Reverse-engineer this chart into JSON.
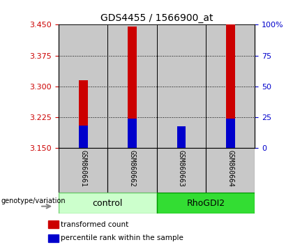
{
  "title": "GDS4455 / 1566900_at",
  "samples": [
    "GSM860661",
    "GSM860662",
    "GSM860663",
    "GSM860664"
  ],
  "red_values": [
    3.315,
    3.445,
    3.19,
    3.45
  ],
  "blue_values": [
    3.205,
    3.222,
    3.204,
    3.222
  ],
  "ymin": 3.15,
  "ymax": 3.45,
  "yticks_left": [
    3.15,
    3.225,
    3.3,
    3.375,
    3.45
  ],
  "yticks_right": [
    0,
    25,
    50,
    75,
    100
  ],
  "groups": [
    {
      "label": "control",
      "indices": [
        0,
        1
      ],
      "facecolor": "#ccffcc",
      "edgecolor": "#66cc66"
    },
    {
      "label": "RhoGDI2",
      "indices": [
        2,
        3
      ],
      "facecolor": "#33dd33",
      "edgecolor": "#009900"
    }
  ],
  "group_label_text": "genotype/variation",
  "red_color": "#CC0000",
  "blue_color": "#0000CC",
  "bar_bg_color": "#C8C8C8",
  "legend_red": "transformed count",
  "legend_blue": "percentile rank within the sample",
  "title_fontsize": 10,
  "tick_label_fontsize": 8,
  "sample_fontsize": 7,
  "group_fontsize": 9,
  "legend_fontsize": 7.5
}
